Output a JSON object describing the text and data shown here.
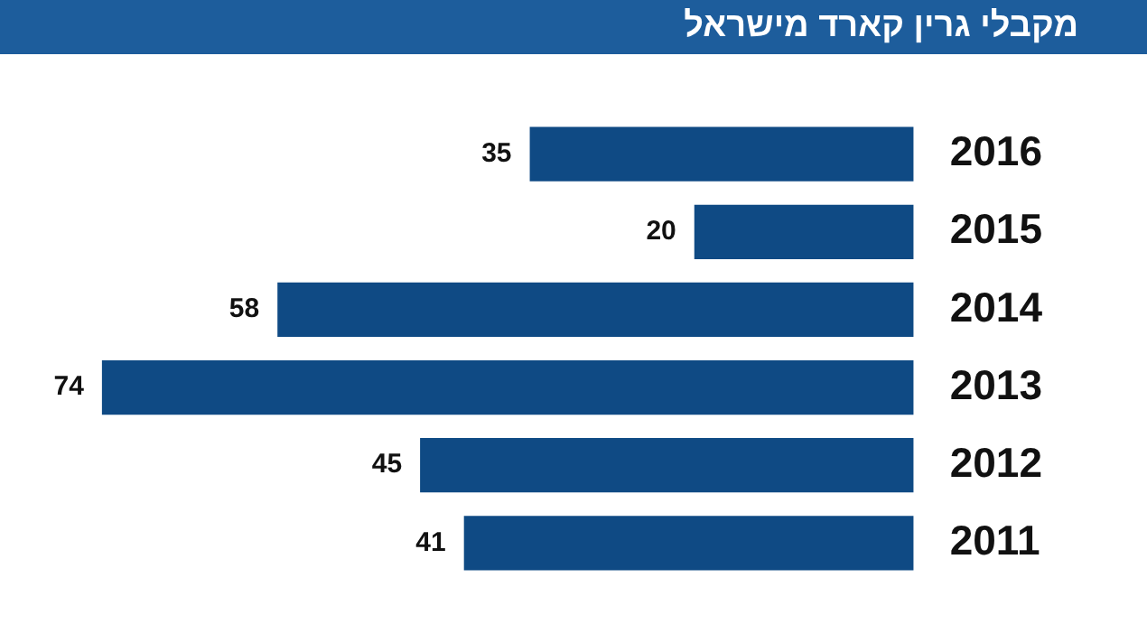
{
  "chart_data": {
    "type": "bar",
    "orientation": "horizontal",
    "title": "מקבלי גרין קארד מישראל",
    "categories": [
      "2016",
      "2015",
      "2014",
      "2013",
      "2012",
      "2011"
    ],
    "values": [
      35,
      20,
      58,
      74,
      45,
      41
    ],
    "color": "#0f4a84",
    "data_labels": true,
    "grid": false,
    "legend": false
  }
}
